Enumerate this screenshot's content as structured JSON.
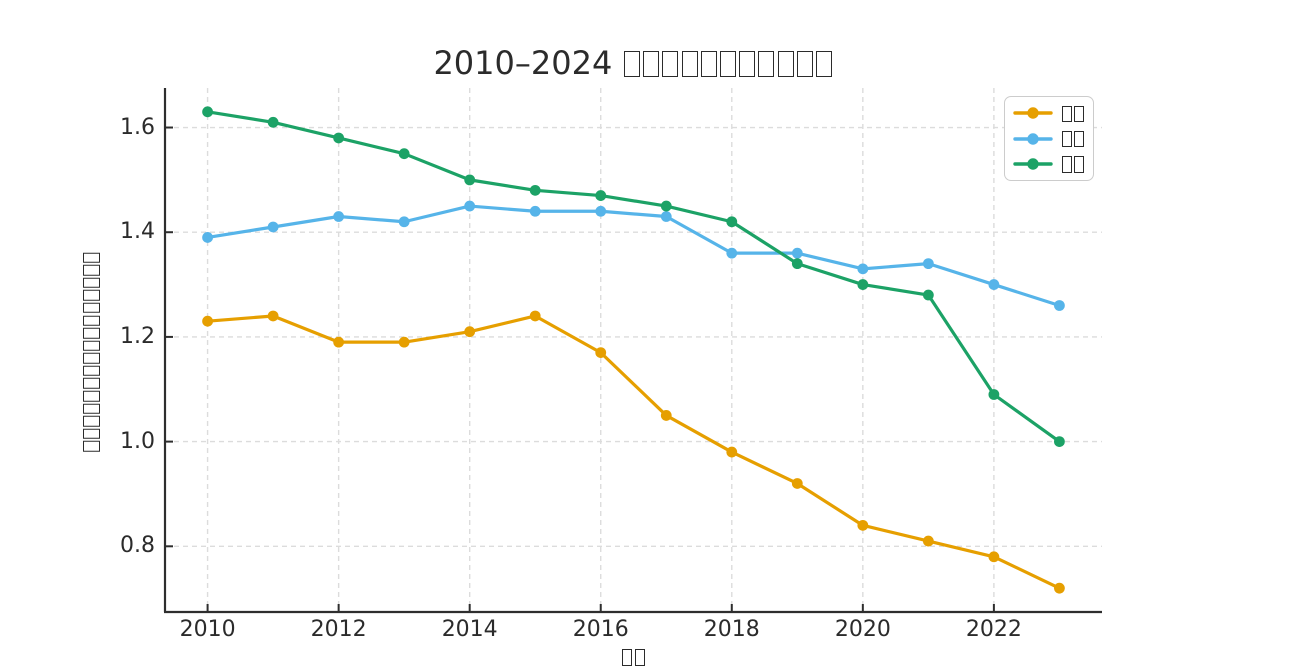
{
  "colors": {
    "background": "#ffffff",
    "text": "#2b2b2b",
    "grid": "#dcdcdc",
    "spine": "#2e2e2e"
  },
  "chart_data": {
    "type": "line",
    "title": "2010–2024 □□□□□□□□□□□",
    "xlabel": "□□",
    "ylabel": "□□□□□□□□□□□□□□□□",
    "x": [
      2010,
      2011,
      2012,
      2013,
      2014,
      2015,
      2016,
      2017,
      2018,
      2019,
      2020,
      2021,
      2022,
      2023
    ],
    "series": [
      {
        "label": "□□",
        "color": "#E69F00",
        "values": [
          1.23,
          1.24,
          1.19,
          1.19,
          1.21,
          1.24,
          1.17,
          1.05,
          0.98,
          0.92,
          0.84,
          0.81,
          0.78,
          0.72
        ]
      },
      {
        "label": "□□",
        "color": "#56B4E9",
        "values": [
          1.39,
          1.41,
          1.43,
          1.42,
          1.45,
          1.44,
          1.44,
          1.43,
          1.36,
          1.36,
          1.33,
          1.34,
          1.3,
          1.26
        ]
      },
      {
        "label": "□□",
        "color": "#1CA266",
        "values": [
          1.63,
          1.61,
          1.58,
          1.55,
          1.5,
          1.48,
          1.47,
          1.45,
          1.42,
          1.34,
          1.3,
          1.28,
          1.09,
          1.0
        ]
      }
    ],
    "xticks": {
      "values": [
        2010,
        2012,
        2014,
        2016,
        2018,
        2020,
        2022
      ],
      "labels": [
        "2010",
        "2012",
        "2014",
        "2016",
        "2018",
        "2020",
        "2022"
      ]
    },
    "yticks": {
      "values": [
        0.8,
        1.0,
        1.2,
        1.4,
        1.6
      ],
      "labels": [
        "0.8",
        "1.0",
        "1.2",
        "1.4",
        "1.6"
      ]
    },
    "xlim": [
      2009.35,
      2023.65
    ],
    "ylim": [
      0.6745,
      1.6755
    ],
    "grid": true,
    "grid_style": "dashed",
    "legend_position": "upper-right",
    "marker": "circle",
    "line_width": 3.2,
    "note_visible_glyphs": "CJK labels render as missing-glyph boxes in the screenshot"
  }
}
